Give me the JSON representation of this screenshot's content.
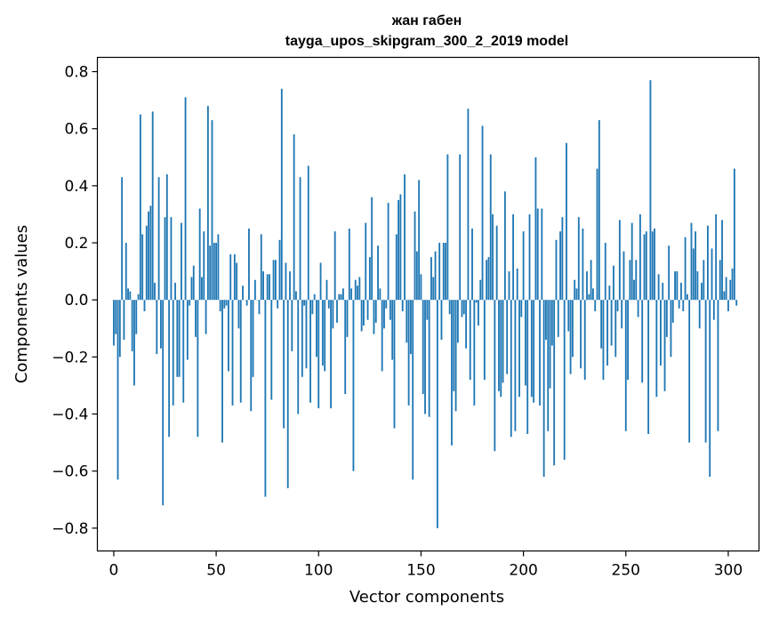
{
  "chart_data": {
    "type": "bar",
    "title": "жан габен",
    "subtitle": "tayga_upos_skipgram_300_2_2019 model",
    "xlabel": "Vector components",
    "ylabel": "Components values",
    "xlim": [
      -8,
      315
    ],
    "ylim": [
      -0.88,
      0.85
    ],
    "xticks": [
      0,
      50,
      100,
      150,
      200,
      250,
      300
    ],
    "yticks": [
      -0.8,
      -0.6,
      -0.4,
      -0.2,
      0.0,
      0.2,
      0.4,
      0.6,
      0.8
    ],
    "ytick_labels": [
      "−0.8",
      "−0.6",
      "−0.4",
      "−0.2",
      "0.0",
      "0.2",
      "0.4",
      "0.6",
      "0.8"
    ],
    "grid": false,
    "color": "#1f77b4",
    "values": [
      -0.16,
      -0.12,
      -0.63,
      -0.2,
      0.43,
      -0.14,
      0.2,
      0.04,
      0.03,
      -0.18,
      -0.3,
      -0.12,
      0.02,
      0.65,
      0.23,
      -0.04,
      0.26,
      0.31,
      0.33,
      0.66,
      0.06,
      -0.19,
      0.43,
      -0.17,
      -0.72,
      0.29,
      0.44,
      -0.48,
      0.29,
      -0.37,
      0.06,
      -0.27,
      -0.27,
      0.27,
      -0.36,
      0.71,
      -0.21,
      -0.02,
      0.08,
      0.12,
      -0.13,
      -0.48,
      0.32,
      0.08,
      0.24,
      -0.12,
      0.68,
      0.19,
      0.63,
      0.2,
      0.2,
      0.23,
      -0.04,
      -0.5,
      -0.03,
      -0.02,
      -0.25,
      0.16,
      -0.37,
      0.16,
      0.13,
      -0.1,
      -0.36,
      0.05,
      0.0,
      -0.02,
      0.25,
      -0.39,
      -0.27,
      0.07,
      0.0,
      -0.05,
      0.23,
      0.1,
      -0.69,
      0.09,
      0.09,
      -0.35,
      0.14,
      0.14,
      -0.03,
      0.21,
      0.74,
      -0.45,
      0.13,
      -0.66,
      0.1,
      -0.18,
      0.58,
      0.03,
      -0.4,
      0.43,
      -0.27,
      -0.02,
      -0.24,
      0.47,
      -0.36,
      -0.05,
      0.02,
      -0.2,
      -0.38,
      0.13,
      -0.23,
      -0.25,
      0.07,
      -0.03,
      -0.38,
      -0.1,
      0.24,
      -0.08,
      0.02,
      0.02,
      0.04,
      -0.33,
      -0.13,
      0.25,
      0.04,
      -0.6,
      0.07,
      0.05,
      0.08,
      -0.11,
      -0.09,
      0.27,
      -0.07,
      0.15,
      0.36,
      -0.12,
      -0.08,
      0.19,
      0.04,
      -0.25,
      -0.1,
      -0.03,
      0.34,
      -0.07,
      -0.21,
      -0.45,
      0.23,
      0.35,
      0.37,
      -0.04,
      0.44,
      -0.15,
      -0.37,
      -0.19,
      -0.63,
      0.31,
      0.17,
      0.42,
      0.09,
      -0.33,
      -0.4,
      -0.07,
      -0.41,
      0.15,
      0.08,
      0.17,
      -0.8,
      0.2,
      -0.14,
      0.2,
      0.2,
      0.51,
      -0.05,
      -0.51,
      -0.32,
      -0.39,
      -0.15,
      0.51,
      -0.06,
      -0.05,
      -0.17,
      0.67,
      -0.28,
      0.25,
      -0.37,
      -0.01,
      -0.09,
      0.07,
      0.61,
      -0.28,
      0.14,
      0.15,
      0.51,
      0.3,
      -0.53,
      0.26,
      -0.32,
      -0.34,
      -0.29,
      0.38,
      -0.26,
      0.1,
      -0.48,
      0.3,
      -0.46,
      0.11,
      -0.34,
      -0.06,
      0.24,
      -0.3,
      -0.47,
      0.3,
      -0.34,
      -0.36,
      0.5,
      0.32,
      -0.37,
      0.32,
      -0.62,
      -0.14,
      -0.46,
      -0.31,
      -0.16,
      -0.58,
      0.21,
      -0.13,
      0.24,
      0.29,
      -0.56,
      0.55,
      -0.11,
      -0.26,
      -0.2,
      0.07,
      0.04,
      0.29,
      -0.24,
      0.25,
      -0.28,
      0.1,
      0.02,
      0.14,
      0.04,
      -0.04,
      0.46,
      0.63,
      -0.17,
      -0.28,
      0.2,
      -0.23,
      0.05,
      -0.16,
      0.12,
      -0.2,
      -0.04,
      0.28,
      -0.1,
      0.17,
      -0.46,
      -0.28,
      0.14,
      0.27,
      0.07,
      0.14,
      -0.06,
      0.3,
      -0.29,
      0.23,
      0.24,
      -0.47,
      0.77,
      0.24,
      0.25,
      -0.34,
      0.09,
      -0.23,
      0.06,
      -0.32,
      -0.13,
      0.19,
      -0.2,
      -0.08,
      0.1,
      0.1,
      -0.03,
      0.06,
      -0.04,
      0.22,
      0.02,
      -0.5,
      0.27,
      0.18,
      0.24,
      0.1,
      -0.1,
      0.06,
      0.14,
      -0.5,
      0.26,
      -0.62,
      0.18,
      -0.07,
      0.3,
      -0.46,
      0.14,
      0.28,
      0.03,
      0.08,
      -0.04,
      0.07,
      0.11,
      0.46,
      -0.02
    ]
  }
}
